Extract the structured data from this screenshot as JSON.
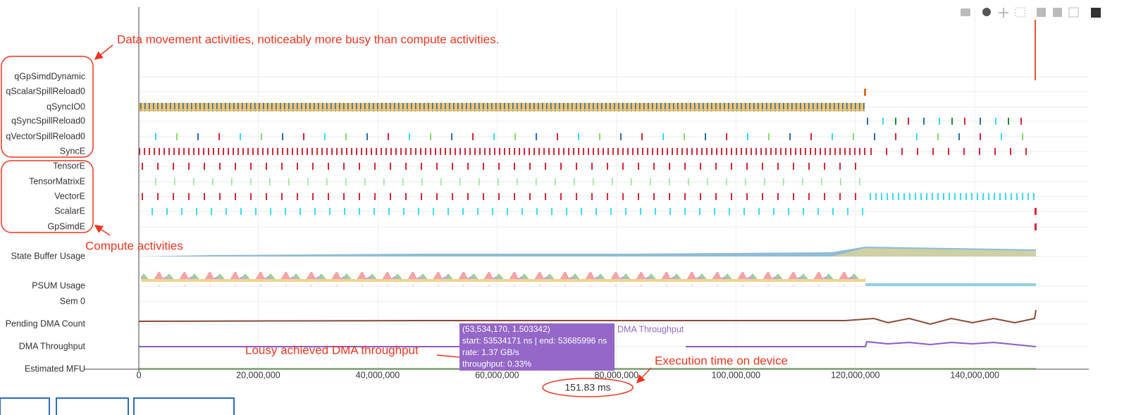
{
  "chart_data": {
    "type": "timeline",
    "categories": [
      "qGpSimdDynamic",
      "qScalarSpillReload0",
      "qSyncIO0",
      "qSyncSpillReload0",
      "qVectorSpillReload0",
      "SyncE",
      "TensorE",
      "TensorMatrixE",
      "VectorE",
      "ScalarE",
      "GpSimdE",
      "State Buffer Usage",
      "PSUM Usage",
      "Sem 0",
      "Pending DMA Count",
      "DMA Throughput",
      "Estimated MFU"
    ],
    "xlim": [
      0,
      159100000
    ],
    "xticks": [
      0,
      {
        "value": 20000000,
        "label": "20,000,000"
      },
      {
        "value": 40000000,
        "label": "40,000,000"
      },
      {
        "value": 60000000,
        "label": "60,000,000"
      },
      {
        "value": 80000000,
        "label": "80,000,000"
      },
      {
        "value": 100000000,
        "label": "100,000,000"
      },
      {
        "value": 120000000,
        "label": "120,000,000"
      },
      {
        "value": 140000000,
        "label": "140,000,000"
      }
    ],
    "grid": true,
    "annotations": [
      "Data movement activities, noticeably more busy than compute activities.",
      "Compute activities",
      "Lousy achieved DMA throughput",
      "Execution time on device"
    ],
    "tooltip": {
      "series": "DMA Throughput",
      "lines": [
        "(53,534,170, 1.503342)",
        "start: 53534171 ns | end: 53685996 ns",
        "rate: 1.37 GB/s",
        "throughput: 0.33%"
      ]
    },
    "execution_time": "151.83 ms"
  }
}
